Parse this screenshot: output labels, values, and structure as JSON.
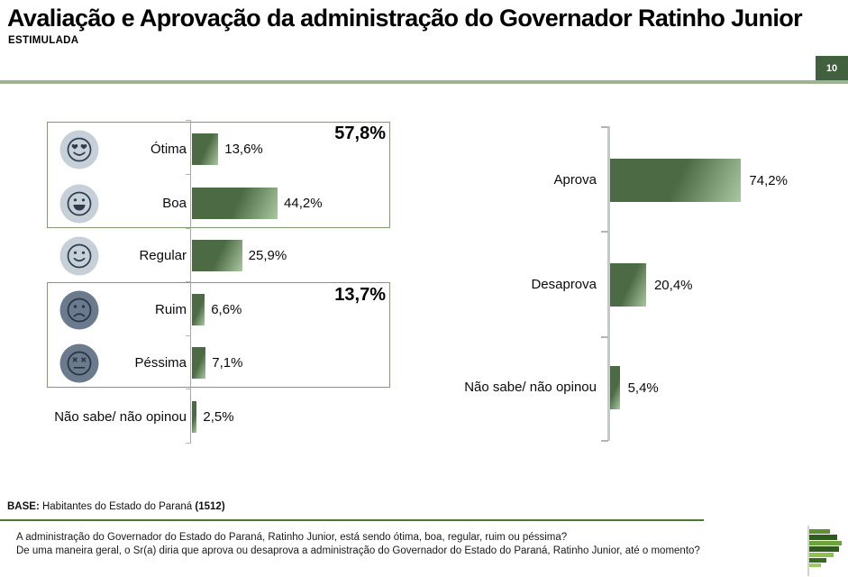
{
  "header": {
    "title": "Avaliação e Aprovação da administração do Governador Ratinho Junior",
    "subtitle": "ESTIMULADA",
    "page_number": "10"
  },
  "colors": {
    "bar_dark": "#4c6b45",
    "bar_light": "#a9c8a1",
    "group_box_border": "#7d9c70",
    "header_rule": "#9db394",
    "footer_rule": "#4f7a2d",
    "page_badge_bg": "#40603e",
    "face_bg_positive": "#c7d0d9",
    "face_bg_negative": "#6b7b8d",
    "face_stroke": "#2e3d4d"
  },
  "chart_data": [
    {
      "type": "bar",
      "title": "Avaliação da administração (estimulada)",
      "orientation": "horizontal",
      "categories": [
        "Ótima",
        "Boa",
        "Regular",
        "Ruim",
        "Péssima",
        "Não sabe/ não opinou"
      ],
      "values": [
        13.6,
        44.2,
        25.9,
        6.6,
        7.1,
        2.5
      ],
      "value_labels": [
        "13,6%",
        "44,2%",
        "25,9%",
        "6,6%",
        "7,1%",
        "2,5%"
      ],
      "icons": [
        "heart-eyes-face",
        "grinning-face",
        "smiling-face",
        "frowning-face",
        "grimacing-face",
        null
      ],
      "groups": [
        {
          "members": [
            "Ótima",
            "Boa"
          ],
          "total_label": "57,8%",
          "total_value": 57.8
        },
        {
          "members": [
            "Ruim",
            "Péssima"
          ],
          "total_label": "13,7%",
          "total_value": 13.7
        }
      ],
      "xlim": [
        0,
        100
      ],
      "grid": false,
      "legend": false
    },
    {
      "type": "bar",
      "title": "Aprovação da administração (estimulada)",
      "orientation": "horizontal",
      "categories": [
        "Aprova",
        "Desaprova",
        "Não sabe/ não opinou"
      ],
      "values": [
        74.2,
        20.4,
        5.4
      ],
      "value_labels": [
        "74,2%",
        "20,4%",
        "5,4%"
      ],
      "xlim": [
        0,
        100
      ],
      "grid": false,
      "legend": false
    }
  ],
  "footer": {
    "base_label": "BASE:",
    "base_text": " Habitantes do Estado do Paraná ",
    "base_count": "(1512)",
    "questions": [
      "A administração do Governador do Estado do Paraná, Ratinho Junior, está sendo ótima, boa, regular, ruim ou péssima?",
      "De uma maneira geral, o Sr(a) diria que aprova ou desaprova a administração do Governador do Estado do Paraná, Ratinho Junior, até o momento?"
    ]
  }
}
